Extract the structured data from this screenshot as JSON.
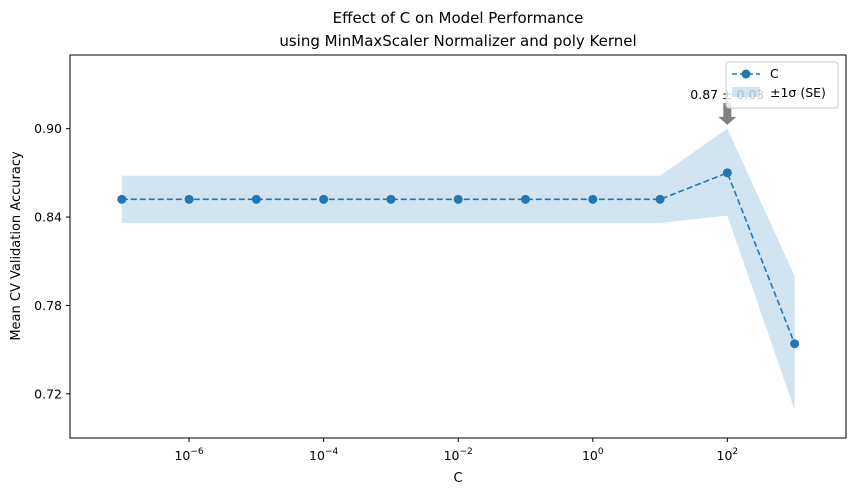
{
  "chart_data": {
    "type": "line",
    "title_line1": "Effect of C on Model Performance",
    "title_line2": "using MinMaxScaler Normalizer and poly Kernel",
    "xlabel": "C",
    "ylabel": "Mean CV Validation Accuracy",
    "x_scale": "log",
    "xlim": [
      1.7e-08,
      5800.0
    ],
    "ylim": [
      0.69,
      0.95
    ],
    "x_ticks": [
      {
        "value": 1e-06,
        "base": "10",
        "exp": "−6"
      },
      {
        "value": 0.0001,
        "base": "10",
        "exp": "−4"
      },
      {
        "value": 0.01,
        "base": "10",
        "exp": "−2"
      },
      {
        "value": 1,
        "base": "10",
        "exp": "0"
      },
      {
        "value": 100,
        "base": "10",
        "exp": "2"
      }
    ],
    "y_ticks": [
      {
        "value": 0.72,
        "label": "0.72"
      },
      {
        "value": 0.78,
        "label": "0.78"
      },
      {
        "value": 0.84,
        "label": "0.84"
      },
      {
        "value": 0.9,
        "label": "0.90"
      }
    ],
    "series": [
      {
        "name": "C",
        "color": "#1f77b4",
        "line_style": "dashed",
        "marker": "circle",
        "x": [
          1e-07,
          1e-06,
          1e-05,
          0.0001,
          0.001,
          0.01,
          0.1,
          1,
          10,
          100,
          1000
        ],
        "y": [
          0.852,
          0.852,
          0.852,
          0.852,
          0.852,
          0.852,
          0.852,
          0.852,
          0.852,
          0.87,
          0.754
        ]
      }
    ],
    "band": {
      "name": "±1σ (SE)",
      "color": "#1f77b4",
      "opacity": 0.2,
      "lower": [
        0.836,
        0.836,
        0.836,
        0.836,
        0.836,
        0.836,
        0.836,
        0.836,
        0.836,
        0.841,
        0.709
      ],
      "upper": [
        0.868,
        0.868,
        0.868,
        0.868,
        0.868,
        0.868,
        0.868,
        0.868,
        0.868,
        0.9,
        0.8
      ]
    },
    "annotation": {
      "text": "0.87 ± 0.03",
      "x": 100,
      "y": 0.87
    },
    "legend_position": "top-right",
    "grid": false
  }
}
